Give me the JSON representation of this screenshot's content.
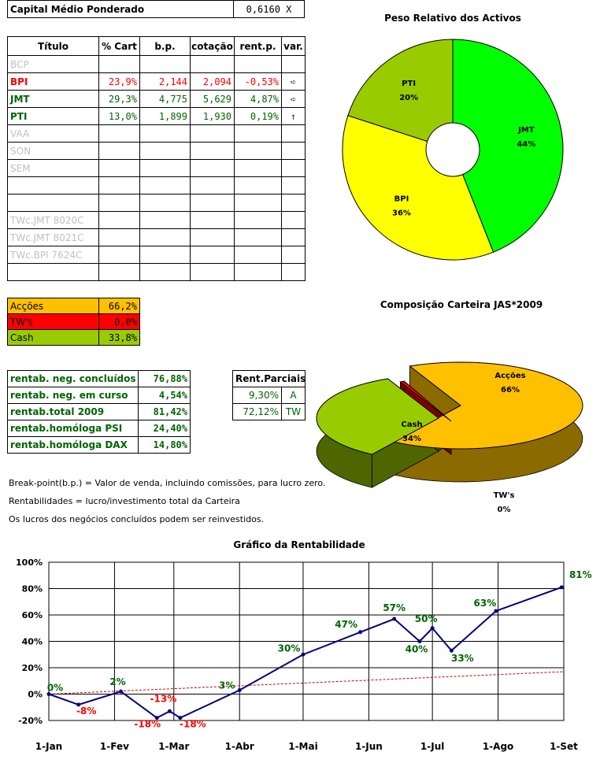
{
  "capital": {
    "label": "Capital Médio Ponderado",
    "value": "0,6160 X"
  },
  "assets_table": {
    "headers": [
      "Título",
      "% Cart",
      "b.p.",
      "cotação",
      "rent.p.",
      "var."
    ],
    "rows": [
      {
        "name": "BCP",
        "pct": "",
        "bp": "",
        "cot": "",
        "rent": "",
        "var": "",
        "style": "grey"
      },
      {
        "name": "BPI",
        "pct": "23,9%",
        "bp": "2,144",
        "cot": "2,094",
        "rent": "-0,53%",
        "var": "➪",
        "style": "red"
      },
      {
        "name": "JMT",
        "pct": "29,3%",
        "bp": "4,775",
        "cot": "5,629",
        "rent": "4,87%",
        "var": "➪",
        "style": "green"
      },
      {
        "name": "PTI",
        "pct": "13,0%",
        "bp": "1,899",
        "cot": "1,930",
        "rent": "0,19%",
        "var": "↑",
        "style": "green"
      },
      {
        "name": "VAA",
        "pct": "",
        "bp": "",
        "cot": "",
        "rent": "",
        "var": "",
        "style": "grey"
      },
      {
        "name": "SON",
        "pct": "",
        "bp": "",
        "cot": "",
        "rent": "",
        "var": "",
        "style": "grey"
      },
      {
        "name": "SEM",
        "pct": "",
        "bp": "",
        "cot": "",
        "rent": "",
        "var": "",
        "style": "grey"
      },
      {
        "name": "",
        "pct": "",
        "bp": "",
        "cot": "",
        "rent": "",
        "var": "",
        "style": "grey"
      },
      {
        "name": "",
        "pct": "",
        "bp": "",
        "cot": "",
        "rent": "",
        "var": "",
        "style": "grey"
      },
      {
        "name": "TWc.JMT 8020C",
        "pct": "",
        "bp": "",
        "cot": "",
        "rent": "",
        "var": "",
        "style": "grey"
      },
      {
        "name": "TWc.JMT 8021C",
        "pct": "",
        "bp": "",
        "cot": "",
        "rent": "",
        "var": "",
        "style": "grey"
      },
      {
        "name": "TWc.BPI 7624C",
        "pct": "",
        "bp": "",
        "cot": "",
        "rent": "",
        "var": "",
        "style": "grey"
      },
      {
        "name": "",
        "pct": "",
        "bp": "",
        "cot": "",
        "rent": "",
        "var": "",
        "style": "grey"
      }
    ]
  },
  "composition_table": [
    {
      "label": "Acções",
      "value": "66,2%",
      "color": "#FFC000"
    },
    {
      "label": "TW's",
      "value": "0,0%",
      "color": "#FF0000"
    },
    {
      "label": "Cash",
      "value": "33,8%",
      "color": "#99CC00"
    }
  ],
  "rent_table": [
    {
      "label": "rentab. neg. concluídos",
      "value": "76,88%"
    },
    {
      "label": "rentab. neg. em curso",
      "value": "4,54%"
    },
    {
      "label": "rentab.total 2009",
      "value": "81,42%"
    },
    {
      "label": "rentab.homóloga PSI",
      "value": "24,40%"
    },
    {
      "label": "rentab.homóloga DAX",
      "value": "14,80%"
    }
  ],
  "partials_table": {
    "header": "Rent.Parciais",
    "rows": [
      {
        "value": "9,30%",
        "tag": "A"
      },
      {
        "value": "72,12%",
        "tag": "TW"
      }
    ]
  },
  "notes": [
    "Break-point(b.p.) = Valor de venda, incluindo comissões, para lucro zero.",
    "Rentabilidades = lucro/investimento total da Carteira",
    "Os lucros dos negócios concluídos podem ser reinvestidos."
  ],
  "colors": {
    "green_text": "#006400",
    "red_text": "#FF0000",
    "grey_text": "#C0C0C0",
    "line": "#000080",
    "trend": "#CC0000"
  },
  "chart_data": [
    {
      "type": "pie",
      "title": "Peso Relativo dos Activos",
      "slices": [
        {
          "label": "JMT",
          "value": 44,
          "display": "44%",
          "color": "#00FF00"
        },
        {
          "label": "BPI",
          "value": 36,
          "display": "36%",
          "color": "#FFFF00"
        },
        {
          "label": "PTI",
          "value": 20,
          "display": "20%",
          "color": "#99CC00"
        }
      ]
    },
    {
      "type": "pie",
      "title": "Composição Carteira JAS*2009",
      "slices": [
        {
          "label": "Acções",
          "value": 66,
          "display": "66%",
          "color": "#FFC000"
        },
        {
          "label": "Cash",
          "value": 34,
          "display": "34%",
          "color": "#99CC00"
        },
        {
          "label": "TW's",
          "value": 0,
          "display": "0%",
          "color": "#FF0000"
        }
      ]
    },
    {
      "type": "line",
      "title": "Gráfico da Rentabilidade",
      "x_ticks": [
        "1-Jan",
        "1-Fev",
        "1-Mar",
        "1-Abr",
        "1-Mai",
        "1-Jun",
        "1-Jul",
        "1-Ago",
        "1-Set"
      ],
      "y_ticks": [
        "-20%",
        "0%",
        "20%",
        "40%",
        "60%",
        "80%",
        "100%"
      ],
      "ylim": [
        -20,
        100
      ],
      "xlim": [
        "2009-01-01",
        "2009-09-01"
      ],
      "series": [
        {
          "points": [
            {
              "x": "2009-01-01",
              "y": 0
            },
            {
              "x": "2009-01-15",
              "y": -8
            },
            {
              "x": "2009-02-04",
              "y": 2
            },
            {
              "x": "2009-02-21",
              "y": -18
            },
            {
              "x": "2009-02-27",
              "y": -13
            },
            {
              "x": "2009-03-04",
              "y": -18
            },
            {
              "x": "2009-04-01",
              "y": 3
            },
            {
              "x": "2009-05-01",
              "y": 30
            },
            {
              "x": "2009-05-28",
              "y": 47
            },
            {
              "x": "2009-06-13",
              "y": 57
            },
            {
              "x": "2009-06-25",
              "y": 40
            },
            {
              "x": "2009-07-01",
              "y": 50
            },
            {
              "x": "2009-07-10",
              "y": 33
            },
            {
              "x": "2009-07-31",
              "y": 63
            },
            {
              "x": "2009-08-31",
              "y": 81
            }
          ]
        },
        {
          "style": "dotted-trend",
          "points": [
            {
              "x": "2009-01-01",
              "y": 0
            },
            {
              "x": "2009-09-01",
              "y": 17
            }
          ]
        }
      ],
      "data_labels": [
        {
          "text": "0%",
          "x": "2009-01-01",
          "y": 0,
          "color": "green"
        },
        {
          "text": "-8%",
          "x": "2009-01-15",
          "y": -8,
          "color": "red"
        },
        {
          "text": "2%",
          "x": "2009-02-04",
          "y": 2,
          "color": "green"
        },
        {
          "text": "-18%",
          "x": "2009-02-21",
          "y": -18,
          "color": "red"
        },
        {
          "text": "-13%",
          "x": "2009-02-27",
          "y": -13,
          "color": "red"
        },
        {
          "text": "-18%",
          "x": "2009-03-04",
          "y": -18,
          "color": "red"
        },
        {
          "text": "3%",
          "x": "2009-04-01",
          "y": 3,
          "color": "green"
        },
        {
          "text": "30%",
          "x": "2009-05-01",
          "y": 30,
          "color": "green"
        },
        {
          "text": "47%",
          "x": "2009-05-28",
          "y": 47,
          "color": "green"
        },
        {
          "text": "57%",
          "x": "2009-06-13",
          "y": 57,
          "color": "green"
        },
        {
          "text": "40%",
          "x": "2009-06-25",
          "y": 40,
          "color": "green"
        },
        {
          "text": "50%",
          "x": "2009-07-01",
          "y": 50,
          "color": "green"
        },
        {
          "text": "33%",
          "x": "2009-07-10",
          "y": 33,
          "color": "green"
        },
        {
          "text": "63%",
          "x": "2009-07-31",
          "y": 63,
          "color": "green"
        },
        {
          "text": "81%",
          "x": "2009-08-31",
          "y": 81,
          "color": "green"
        }
      ]
    }
  ]
}
